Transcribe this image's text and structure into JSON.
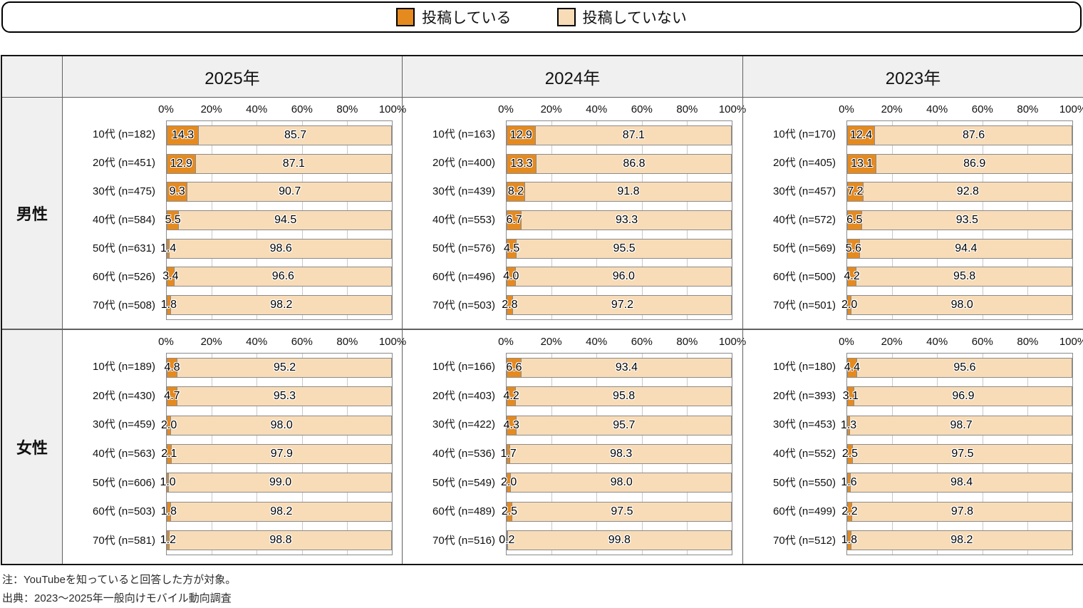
{
  "legend": {
    "posting_label": "投稿している",
    "not_posting_label": "投稿していない"
  },
  "colors": {
    "posting": "#E58A1F",
    "not_posting": "#F8DCB7",
    "segment_border": "#8b8b8b",
    "header_bg": "#f0f0f0"
  },
  "table": {
    "col_headers": [
      "2025年",
      "2024年",
      "2023年"
    ],
    "row_headers": [
      "男性",
      "女性"
    ]
  },
  "axis_ticks": [
    "0%",
    "20%",
    "40%",
    "60%",
    "80%",
    "100%"
  ],
  "notes": {
    "note1": "注：YouTubeを知っていると回答した方が対象。",
    "note2": "出典：2023～2025年一般向けモバイル動向調査"
  },
  "chart_data": [
    {
      "id": "male-2025",
      "gender": "男性",
      "year": "2025年",
      "type": "bar",
      "series_names": [
        "投稿している",
        "投稿していない"
      ],
      "xlim": [
        0,
        100
      ],
      "rows": [
        {
          "label": "10代 (n=182)",
          "posting": 14.3,
          "not_posting": 85.7
        },
        {
          "label": "20代 (n=451)",
          "posting": 12.9,
          "not_posting": 87.1
        },
        {
          "label": "30代 (n=475)",
          "posting": 9.3,
          "not_posting": 90.7
        },
        {
          "label": "40代 (n=584)",
          "posting": 5.5,
          "not_posting": 94.5
        },
        {
          "label": "50代 (n=631)",
          "posting": 1.4,
          "not_posting": 98.6
        },
        {
          "label": "60代 (n=526)",
          "posting": 3.4,
          "not_posting": 96.6
        },
        {
          "label": "70代 (n=508)",
          "posting": 1.8,
          "not_posting": 98.2
        }
      ]
    },
    {
      "id": "male-2024",
      "gender": "男性",
      "year": "2024年",
      "type": "bar",
      "series_names": [
        "投稿している",
        "投稿していない"
      ],
      "xlim": [
        0,
        100
      ],
      "rows": [
        {
          "label": "10代 (n=163)",
          "posting": 12.9,
          "not_posting": 87.1
        },
        {
          "label": "20代 (n=400)",
          "posting": 13.3,
          "not_posting": 86.8
        },
        {
          "label": "30代 (n=439)",
          "posting": 8.2,
          "not_posting": 91.8
        },
        {
          "label": "40代 (n=553)",
          "posting": 6.7,
          "not_posting": 93.3
        },
        {
          "label": "50代 (n=576)",
          "posting": 4.5,
          "not_posting": 95.5
        },
        {
          "label": "60代 (n=496)",
          "posting": 4.0,
          "not_posting": 96.0
        },
        {
          "label": "70代 (n=503)",
          "posting": 2.8,
          "not_posting": 97.2
        }
      ]
    },
    {
      "id": "male-2023",
      "gender": "男性",
      "year": "2023年",
      "type": "bar",
      "series_names": [
        "投稿している",
        "投稿していない"
      ],
      "xlim": [
        0,
        100
      ],
      "rows": [
        {
          "label": "10代 (n=170)",
          "posting": 12.4,
          "not_posting": 87.6
        },
        {
          "label": "20代 (n=405)",
          "posting": 13.1,
          "not_posting": 86.9
        },
        {
          "label": "30代 (n=457)",
          "posting": 7.2,
          "not_posting": 92.8
        },
        {
          "label": "40代 (n=572)",
          "posting": 6.5,
          "not_posting": 93.5
        },
        {
          "label": "50代 (n=569)",
          "posting": 5.6,
          "not_posting": 94.4
        },
        {
          "label": "60代 (n=500)",
          "posting": 4.2,
          "not_posting": 95.8
        },
        {
          "label": "70代 (n=501)",
          "posting": 2.0,
          "not_posting": 98.0
        }
      ]
    },
    {
      "id": "female-2025",
      "gender": "女性",
      "year": "2025年",
      "type": "bar",
      "series_names": [
        "投稿している",
        "投稿していない"
      ],
      "xlim": [
        0,
        100
      ],
      "rows": [
        {
          "label": "10代 (n=189)",
          "posting": 4.8,
          "not_posting": 95.2
        },
        {
          "label": "20代 (n=430)",
          "posting": 4.7,
          "not_posting": 95.3
        },
        {
          "label": "30代 (n=459)",
          "posting": 2.0,
          "not_posting": 98.0
        },
        {
          "label": "40代 (n=563)",
          "posting": 2.1,
          "not_posting": 97.9
        },
        {
          "label": "50代 (n=606)",
          "posting": 1.0,
          "not_posting": 99.0
        },
        {
          "label": "60代 (n=503)",
          "posting": 1.8,
          "not_posting": 98.2
        },
        {
          "label": "70代 (n=581)",
          "posting": 1.2,
          "not_posting": 98.8
        }
      ]
    },
    {
      "id": "female-2024",
      "gender": "女性",
      "year": "2024年",
      "type": "bar",
      "series_names": [
        "投稿している",
        "投稿していない"
      ],
      "xlim": [
        0,
        100
      ],
      "rows": [
        {
          "label": "10代 (n=166)",
          "posting": 6.6,
          "not_posting": 93.4
        },
        {
          "label": "20代 (n=403)",
          "posting": 4.2,
          "not_posting": 95.8
        },
        {
          "label": "30代 (n=422)",
          "posting": 4.3,
          "not_posting": 95.7
        },
        {
          "label": "40代 (n=536)",
          "posting": 1.7,
          "not_posting": 98.3
        },
        {
          "label": "50代 (n=549)",
          "posting": 2.0,
          "not_posting": 98.0
        },
        {
          "label": "60代 (n=489)",
          "posting": 2.5,
          "not_posting": 97.5
        },
        {
          "label": "70代 (n=516)",
          "posting": 0.2,
          "not_posting": 99.8
        }
      ]
    },
    {
      "id": "female-2023",
      "gender": "女性",
      "year": "2023年",
      "type": "bar",
      "series_names": [
        "投稿している",
        "投稿していない"
      ],
      "xlim": [
        0,
        100
      ],
      "rows": [
        {
          "label": "10代 (n=180)",
          "posting": 4.4,
          "not_posting": 95.6
        },
        {
          "label": "20代 (n=393)",
          "posting": 3.1,
          "not_posting": 96.9
        },
        {
          "label": "30代 (n=453)",
          "posting": 1.3,
          "not_posting": 98.7
        },
        {
          "label": "40代 (n=552)",
          "posting": 2.5,
          "not_posting": 97.5
        },
        {
          "label": "50代 (n=550)",
          "posting": 1.6,
          "not_posting": 98.4
        },
        {
          "label": "60代 (n=499)",
          "posting": 2.2,
          "not_posting": 97.8
        },
        {
          "label": "70代 (n=512)",
          "posting": 1.8,
          "not_posting": 98.2
        }
      ]
    }
  ]
}
